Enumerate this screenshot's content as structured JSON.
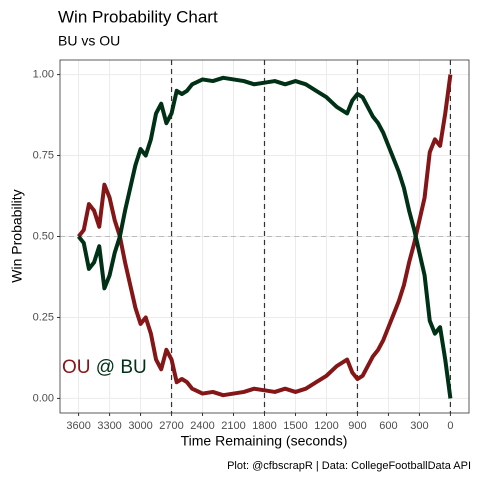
{
  "chart_data": {
    "type": "line",
    "title": "Win Probability Chart",
    "subtitle": "BU vs OU",
    "x_label": "Time Remaining (seconds)",
    "y_label": "Win Probability",
    "caption": "Plot: @cfbscrapR | Data: CollegeFootballData API",
    "annotation_link": "@",
    "x": [
      3600,
      3550,
      3500,
      3450,
      3400,
      3350,
      3300,
      3250,
      3200,
      3150,
      3100,
      3050,
      3000,
      2950,
      2900,
      2850,
      2800,
      2750,
      2700,
      2650,
      2600,
      2550,
      2500,
      2400,
      2300,
      2200,
      2100,
      2000,
      1900,
      1800,
      1700,
      1600,
      1500,
      1400,
      1300,
      1200,
      1100,
      1000,
      950,
      900,
      850,
      800,
      750,
      700,
      650,
      600,
      550,
      500,
      450,
      400,
      350,
      300,
      250,
      200,
      150,
      100,
      50,
      0
    ],
    "series": [
      {
        "name": "OU",
        "color": "#841617",
        "values": [
          0.5,
          0.52,
          0.6,
          0.58,
          0.53,
          0.66,
          0.62,
          0.55,
          0.5,
          0.42,
          0.35,
          0.28,
          0.23,
          0.25,
          0.2,
          0.12,
          0.09,
          0.15,
          0.12,
          0.05,
          0.06,
          0.05,
          0.03,
          0.015,
          0.02,
          0.01,
          0.015,
          0.02,
          0.03,
          0.025,
          0.02,
          0.03,
          0.02,
          0.03,
          0.05,
          0.07,
          0.1,
          0.12,
          0.08,
          0.06,
          0.07,
          0.1,
          0.13,
          0.15,
          0.18,
          0.22,
          0.26,
          0.3,
          0.35,
          0.42,
          0.48,
          0.55,
          0.62,
          0.76,
          0.8,
          0.78,
          0.88,
          1.0
        ]
      },
      {
        "name": "BU",
        "color": "#003015",
        "values": [
          0.5,
          0.48,
          0.4,
          0.42,
          0.47,
          0.34,
          0.38,
          0.45,
          0.5,
          0.58,
          0.65,
          0.72,
          0.77,
          0.75,
          0.8,
          0.88,
          0.91,
          0.85,
          0.88,
          0.95,
          0.94,
          0.95,
          0.97,
          0.985,
          0.98,
          0.99,
          0.985,
          0.98,
          0.97,
          0.975,
          0.98,
          0.97,
          0.98,
          0.97,
          0.95,
          0.93,
          0.9,
          0.88,
          0.92,
          0.94,
          0.93,
          0.9,
          0.87,
          0.85,
          0.82,
          0.78,
          0.74,
          0.7,
          0.65,
          0.58,
          0.52,
          0.45,
          0.38,
          0.24,
          0.2,
          0.22,
          0.12,
          0.0
        ]
      }
    ],
    "xlim": [
      3780,
      -180
    ],
    "ylim": [
      -0.045,
      1.045
    ],
    "xticks": [
      3600,
      3300,
      3000,
      2700,
      2400,
      2100,
      1800,
      1500,
      1200,
      900,
      600,
      300,
      0
    ],
    "yticks": [
      {
        "value": 0,
        "label": "0.00"
      },
      {
        "value": 0.25,
        "label": "0.25"
      },
      {
        "value": 0.5,
        "label": "0.50"
      },
      {
        "value": 0.75,
        "label": "0.75"
      },
      {
        "value": 1,
        "label": "1.00"
      }
    ],
    "vlines": [
      2700,
      1800,
      900,
      0
    ],
    "hline": 0.5,
    "grid": true
  }
}
